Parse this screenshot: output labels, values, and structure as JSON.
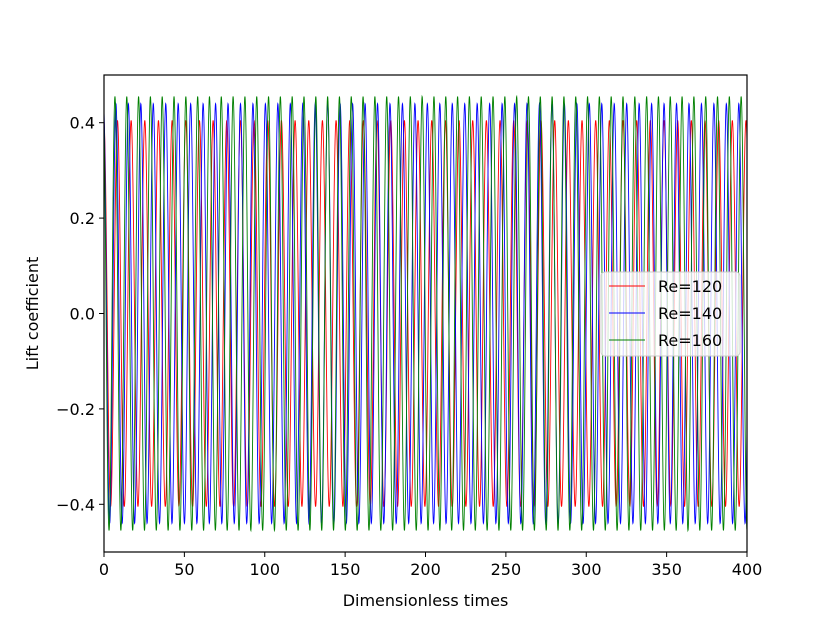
{
  "chart_data": {
    "type": "line",
    "title": "",
    "xlabel": "Dimensionless times",
    "ylabel": "Lift coefficient",
    "xlim": [
      0,
      400
    ],
    "ylim": [
      -0.5,
      0.5
    ],
    "xticks": [
      0,
      50,
      100,
      150,
      200,
      250,
      300,
      350,
      400
    ],
    "yticks": [
      -0.4,
      -0.2,
      0.0,
      0.2,
      0.4
    ],
    "xtick_labels": [
      "0",
      "50",
      "100",
      "150",
      "200",
      "250",
      "300",
      "350",
      "400"
    ],
    "ytick_labels": [
      "−0.4",
      "−0.2",
      "0.0",
      "0.2",
      "0.4"
    ],
    "grid": false,
    "legend_position": "center-right",
    "series": [
      {
        "name": "Re=120",
        "color": "#ff0000",
        "amplitude_max": 0.405,
        "amplitude_min": -0.405,
        "period": 8.5,
        "phase_t_zero_crossing": 2.0
      },
      {
        "name": "Re=140",
        "color": "#0000ff",
        "amplitude_max": 0.44,
        "amplitude_min": -0.44,
        "period": 7.75,
        "phase_t_zero_crossing": 1.6
      },
      {
        "name": "Re=160",
        "color": "#008000",
        "amplitude_max": 0.455,
        "amplitude_min": -0.455,
        "period": 7.35,
        "phase_t_zero_crossing": 1.3
      }
    ]
  }
}
